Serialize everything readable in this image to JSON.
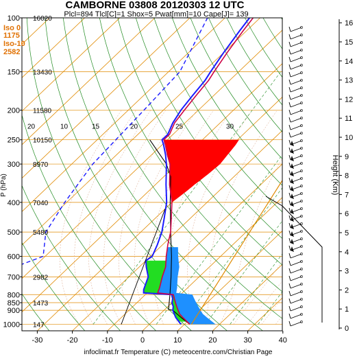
{
  "chart_data": {
    "type": "line",
    "title": "CAMBORNE 03808 20120303 12 UTC",
    "subtitle": "Plcl=894 Tlcl[C]=1 Shox=5 Pwat[mm]=10 Cape[J]= 139",
    "xlabel": "Temperature (C)",
    "ylabel": "P (hPa)",
    "y2label": "Height (Km)",
    "credit": "infoclimat.fr Temperature (C) meteocentre.com/Christian Page",
    "x_ticks": [
      "-30",
      "-20",
      "-10",
      "0",
      "10",
      "20",
      "30",
      "40"
    ],
    "x_tick_values": [
      -30,
      -20,
      -10,
      0,
      10,
      20,
      30,
      40
    ],
    "xlim": [
      -34,
      40
    ],
    "p_ticks": [
      "100",
      "150",
      "200",
      "250",
      "300",
      "400",
      "500",
      "600",
      "700",
      "800",
      "850",
      "900",
      "1000"
    ],
    "p_tick_values": [
      100,
      150,
      200,
      250,
      300,
      400,
      500,
      600,
      700,
      800,
      850,
      900,
      1000
    ],
    "height_ticks": [
      "0",
      "1",
      "2",
      "3",
      "4",
      "5",
      "6",
      "7",
      "8",
      "9",
      "10",
      "11",
      "12",
      "13",
      "14",
      "15",
      "16"
    ],
    "height_labels": [
      {
        "p": 100,
        "text": "16020"
      },
      {
        "p": 150,
        "text": "13430"
      },
      {
        "p": 200,
        "text": "11580"
      },
      {
        "p": 250,
        "text": "10150"
      },
      {
        "p": 300,
        "text": "8970"
      },
      {
        "p": 400,
        "text": "7040"
      },
      {
        "p": 500,
        "text": "5480"
      },
      {
        "p": 700,
        "text": "2982"
      },
      {
        "p": 850,
        "text": "1473"
      },
      {
        "p": 1000,
        "text": "147"
      }
    ],
    "freezing_levels": [
      {
        "label": "Iso 0",
        "value": "1175"
      },
      {
        "label": "Iso-10",
        "value": "2582"
      }
    ],
    "mixing_ratio_labels": [
      "20",
      "10",
      "15",
      "20",
      "25",
      "30"
    ],
    "series": [
      {
        "name": "Temperature",
        "color": "#cc0044",
        "points": [
          [
            1000,
            11.5
          ],
          [
            950,
            7.5
          ],
          [
            925,
            5.5
          ],
          [
            900,
            4.0
          ],
          [
            875,
            2.5
          ],
          [
            850,
            1.0
          ],
          [
            825,
            -0.5
          ],
          [
            800,
            -2.0
          ],
          [
            790,
            -7.0
          ],
          [
            760,
            -8.0
          ],
          [
            700,
            -10.5
          ],
          [
            650,
            -12.5
          ],
          [
            600,
            -15.5
          ],
          [
            550,
            -18.5
          ],
          [
            500,
            -21.5
          ],
          [
            450,
            -25.5
          ],
          [
            400,
            -30.0
          ],
          [
            350,
            -36.0
          ],
          [
            300,
            -42.0
          ],
          [
            280,
            -45.5
          ],
          [
            260,
            -49.0
          ],
          [
            250,
            -51.0
          ],
          [
            240,
            -51.0
          ],
          [
            220,
            -53.0
          ],
          [
            200,
            -54.0
          ],
          [
            180,
            -55.0
          ],
          [
            160,
            -56.0
          ],
          [
            150,
            -57.0
          ],
          [
            130,
            -59.0
          ],
          [
            110,
            -61.0
          ],
          [
            100,
            -62.0
          ]
        ]
      },
      {
        "name": "Dew point",
        "color": "#1a1aff",
        "points": [
          [
            1000,
            9.0
          ],
          [
            950,
            5.5
          ],
          [
            925,
            4.0
          ],
          [
            900,
            2.5
          ],
          [
            875,
            1.5
          ],
          [
            850,
            0.0
          ],
          [
            825,
            -1.0
          ],
          [
            800,
            -2.5
          ],
          [
            790,
            -11.0
          ],
          [
            770,
            -12.0
          ],
          [
            700,
            -14.5
          ],
          [
            650,
            -18.0
          ],
          [
            620,
            -20.0
          ],
          [
            600,
            -19.5
          ],
          [
            550,
            -21.5
          ],
          [
            500,
            -24.0
          ],
          [
            450,
            -27.5
          ],
          [
            400,
            -31.5
          ],
          [
            350,
            -37.0
          ],
          [
            300,
            -43.0
          ],
          [
            280,
            -46.0
          ],
          [
            260,
            -49.5
          ],
          [
            250,
            -51.5
          ],
          [
            240,
            -51.5
          ],
          [
            220,
            -53.5
          ],
          [
            200,
            -55.0
          ],
          [
            180,
            -56.0
          ],
          [
            160,
            -57.0
          ],
          [
            150,
            -58.0
          ],
          [
            130,
            -60.0
          ],
          [
            110,
            -62.0
          ],
          [
            100,
            -63.0
          ]
        ]
      },
      {
        "name": "Parcel",
        "color": "#000000",
        "points": [
          [
            1000,
            11.5
          ],
          [
            950,
            7.0
          ],
          [
            900,
            2.5
          ],
          [
            894,
            1.0
          ],
          [
            850,
            -0.8
          ],
          [
            800,
            -3.0
          ],
          [
            700,
            -8.0
          ],
          [
            600,
            -14.0
          ],
          [
            500,
            -21.5
          ],
          [
            400,
            -30.5
          ],
          [
            330,
            -38.0
          ],
          [
            300,
            -43.0
          ],
          [
            250,
            -55.0
          ]
        ]
      }
    ]
  }
}
